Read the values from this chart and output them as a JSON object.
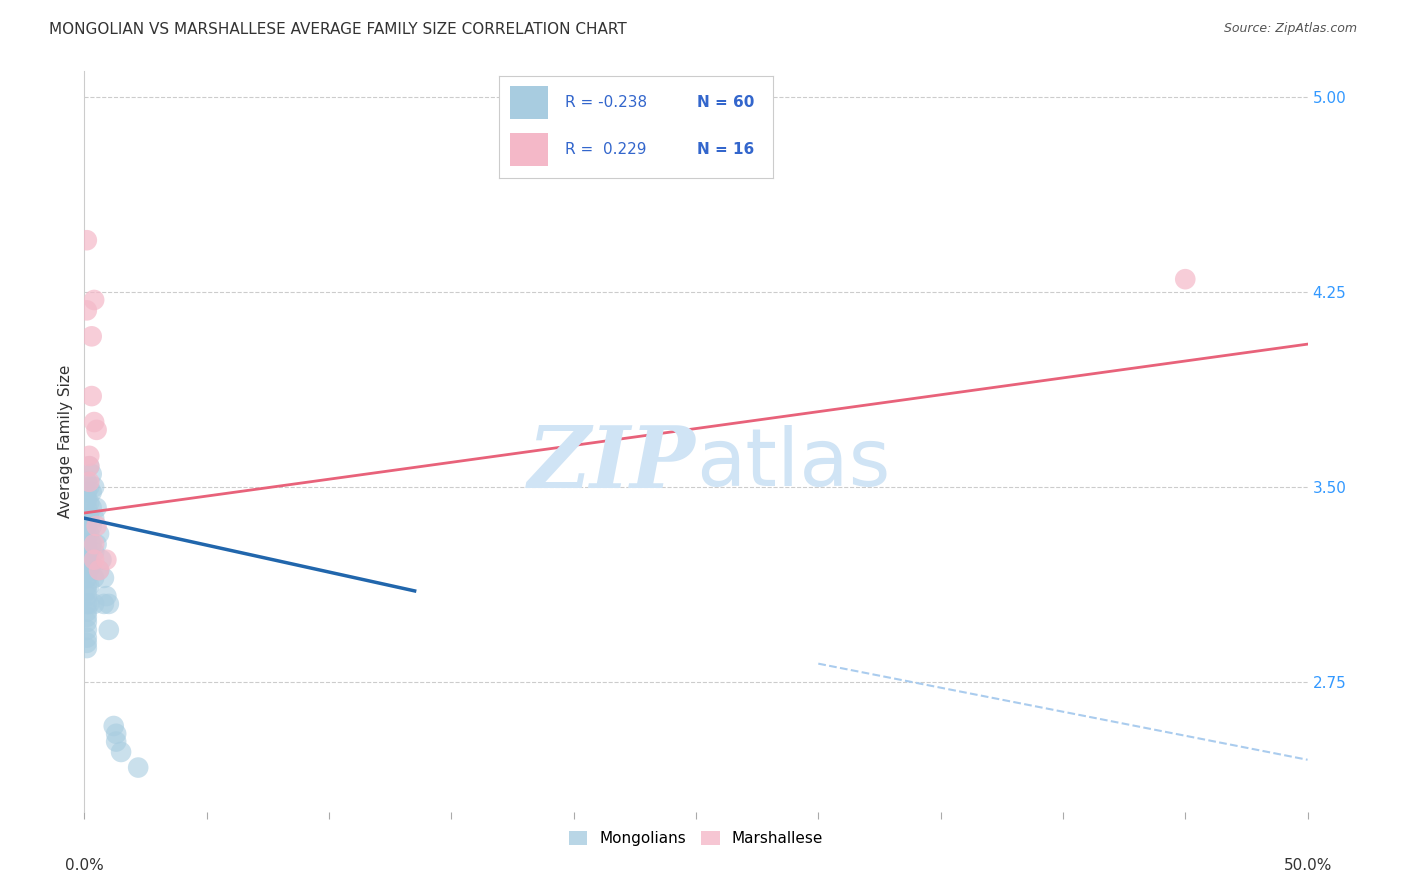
{
  "title": "MONGOLIAN VS MARSHALLESE AVERAGE FAMILY SIZE CORRELATION CHART",
  "source": "Source: ZipAtlas.com",
  "ylabel": "Average Family Size",
  "right_yticks": [
    2.75,
    3.5,
    4.25,
    5.0
  ],
  "legend_mongolians": "Mongolians",
  "legend_marshallese": "Marshallese",
  "mongolian_color": "#a8cce0",
  "marshallese_color": "#f4b8c8",
  "mongolian_line_color": "#2166ac",
  "marshallese_line_color": "#e8627a",
  "dashed_line_color": "#aaccee",
  "background_color": "#ffffff",
  "watermark_color": "#d0e4f5",
  "mongolian_points": [
    [
      0.001,
      3.52
    ],
    [
      0.001,
      3.48
    ],
    [
      0.001,
      3.45
    ],
    [
      0.001,
      3.42
    ],
    [
      0.001,
      3.38
    ],
    [
      0.001,
      3.35
    ],
    [
      0.001,
      3.32
    ],
    [
      0.001,
      3.28
    ],
    [
      0.001,
      3.25
    ],
    [
      0.001,
      3.22
    ],
    [
      0.001,
      3.2
    ],
    [
      0.001,
      3.18
    ],
    [
      0.001,
      3.15
    ],
    [
      0.001,
      3.12
    ],
    [
      0.001,
      3.1
    ],
    [
      0.001,
      3.08
    ],
    [
      0.001,
      3.05
    ],
    [
      0.001,
      3.02
    ],
    [
      0.001,
      3.0
    ],
    [
      0.001,
      2.98
    ],
    [
      0.001,
      2.95
    ],
    [
      0.001,
      2.92
    ],
    [
      0.001,
      2.9
    ],
    [
      0.001,
      2.88
    ],
    [
      0.002,
      3.58
    ],
    [
      0.002,
      3.5
    ],
    [
      0.002,
      3.44
    ],
    [
      0.002,
      3.38
    ],
    [
      0.002,
      3.32
    ],
    [
      0.002,
      3.25
    ],
    [
      0.002,
      3.18
    ],
    [
      0.002,
      3.12
    ],
    [
      0.002,
      3.05
    ],
    [
      0.003,
      3.55
    ],
    [
      0.003,
      3.48
    ],
    [
      0.003,
      3.42
    ],
    [
      0.003,
      3.35
    ],
    [
      0.003,
      3.28
    ],
    [
      0.003,
      3.2
    ],
    [
      0.004,
      3.5
    ],
    [
      0.004,
      3.38
    ],
    [
      0.004,
      3.25
    ],
    [
      0.004,
      3.15
    ],
    [
      0.004,
      3.05
    ],
    [
      0.005,
      3.42
    ],
    [
      0.005,
      3.28
    ],
    [
      0.006,
      3.32
    ],
    [
      0.006,
      3.18
    ],
    [
      0.007,
      3.22
    ],
    [
      0.008,
      3.15
    ],
    [
      0.008,
      3.05
    ],
    [
      0.009,
      3.08
    ],
    [
      0.01,
      3.05
    ],
    [
      0.01,
      2.95
    ],
    [
      0.012,
      2.58
    ],
    [
      0.013,
      2.55
    ],
    [
      0.013,
      2.52
    ],
    [
      0.015,
      2.48
    ],
    [
      0.022,
      2.42
    ]
  ],
  "marshallese_points": [
    [
      0.001,
      4.45
    ],
    [
      0.001,
      4.18
    ],
    [
      0.002,
      3.62
    ],
    [
      0.002,
      3.58
    ],
    [
      0.002,
      3.52
    ],
    [
      0.003,
      4.08
    ],
    [
      0.003,
      3.85
    ],
    [
      0.004,
      4.22
    ],
    [
      0.004,
      3.75
    ],
    [
      0.004,
      3.28
    ],
    [
      0.004,
      3.22
    ],
    [
      0.005,
      3.72
    ],
    [
      0.005,
      3.35
    ],
    [
      0.006,
      3.18
    ],
    [
      0.009,
      3.22
    ],
    [
      0.45,
      4.3
    ]
  ],
  "mongolian_trend_x": [
    0.0,
    0.135
  ],
  "mongolian_trend_y": [
    3.38,
    3.1
  ],
  "marshallese_trend_x": [
    0.0,
    0.5
  ],
  "marshallese_trend_y": [
    3.4,
    4.05
  ],
  "dashed_trend_x": [
    0.3,
    0.5
  ],
  "dashed_trend_y": [
    2.82,
    2.45
  ],
  "xmin": 0.0,
  "xmax": 0.5,
  "ymin": 2.25,
  "ymax": 5.1
}
